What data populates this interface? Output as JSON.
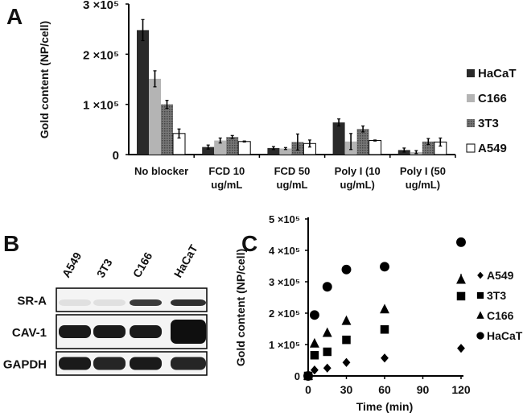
{
  "panels": {
    "a": "A",
    "b": "B",
    "c": "C"
  },
  "chart_data": [
    {
      "type": "bar",
      "panel": "A",
      "ylabel": "Gold content (NP/cell)",
      "ylim": [
        0,
        300000
      ],
      "yticks": [
        "0",
        "1 ×10⁵",
        "2 ×10⁵",
        "3 ×10⁵"
      ],
      "categories": [
        [
          "No blocker"
        ],
        [
          "FCD 10",
          "ug/mL"
        ],
        [
          "FCD 50",
          "ug/mL"
        ],
        [
          "Poly I (10",
          "ug/mL)"
        ],
        [
          "Poly I (50",
          "ug/mL)"
        ]
      ],
      "legend_position": "right",
      "series": [
        {
          "name": "HaCaT",
          "color": "#2a2a2a",
          "values": [
            248000,
            15000,
            13000,
            64000,
            9000
          ],
          "errors": [
            21000,
            4000,
            3000,
            7000,
            4000
          ]
        },
        {
          "name": "C166",
          "color": "#b4b4b4",
          "values": [
            151000,
            28000,
            12000,
            26000,
            5000
          ],
          "errors": [
            16000,
            5000,
            2000,
            16000,
            3000
          ]
        },
        {
          "name": "3T3",
          "color": "#6a6a6a",
          "values": [
            100000,
            35000,
            25000,
            51000,
            26000
          ],
          "errors": [
            8000,
            3000,
            16000,
            6000,
            6000
          ]
        },
        {
          "name": "A549",
          "color": "#ffffff",
          "values": [
            42000,
            26000,
            22000,
            28000,
            25000
          ],
          "errors": [
            9000,
            1000,
            7000,
            1000,
            8000
          ]
        }
      ]
    },
    {
      "type": "scatter",
      "panel": "C",
      "xlabel": "Time (min)",
      "ylabel": "Gold content (NP/cell)",
      "xlim": [
        0,
        120
      ],
      "ylim": [
        0,
        500000
      ],
      "xticks": [
        "0",
        "30",
        "60",
        "90",
        "120"
      ],
      "yticks": [
        "0",
        "1 ×10⁵",
        "2 ×10⁵",
        "3 ×10⁵",
        "4 ×10⁵",
        "5 ×10⁵"
      ],
      "legend_position": "right",
      "x": [
        0,
        5,
        15,
        30,
        60,
        120
      ],
      "series": [
        {
          "name": "A549",
          "marker": "diamond",
          "values": [
            0,
            19000,
            25000,
            43000,
            57000,
            88000
          ]
        },
        {
          "name": "3T3",
          "marker": "square",
          "values": [
            0,
            66000,
            77000,
            115000,
            148000,
            254000
          ]
        },
        {
          "name": "C166",
          "marker": "triangle",
          "values": [
            0,
            103000,
            137000,
            175000,
            212000,
            306000
          ]
        },
        {
          "name": "HaCaT",
          "marker": "circle",
          "values": [
            0,
            194000,
            284000,
            339000,
            348000,
            426000
          ]
        }
      ]
    }
  ],
  "blot": {
    "lanes": [
      "A549",
      "3T3",
      "C166",
      "HaCaT"
    ],
    "rows": [
      {
        "label": "SR-A",
        "intensity": [
          0.05,
          0.05,
          0.8,
          0.85
        ]
      },
      {
        "label": "CAV-1",
        "intensity": [
          0.95,
          0.95,
          0.95,
          1.0
        ]
      },
      {
        "label": "GAPDH",
        "intensity": [
          0.95,
          0.9,
          0.95,
          0.9
        ]
      }
    ]
  }
}
